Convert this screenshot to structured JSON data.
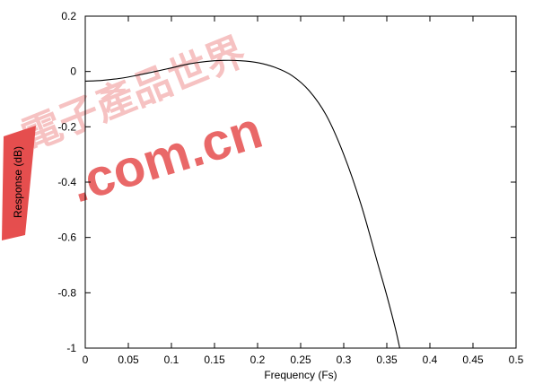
{
  "chart_data": {
    "type": "line",
    "title": "",
    "xlabel": "Frequency (Fs)",
    "ylabel": "Response (dB)",
    "xlim": [
      0,
      0.5
    ],
    "ylim": [
      -1,
      0.2
    ],
    "x_ticks": [
      0,
      0.05,
      0.1,
      0.15,
      0.2,
      0.25,
      0.3,
      0.35,
      0.4,
      0.45,
      0.5
    ],
    "x_tick_labels": [
      "0",
      "0.05",
      "0.1",
      "0.15",
      "0.2",
      "0.25",
      "0.3",
      "0.35",
      "0.4",
      "0.45",
      "0.5"
    ],
    "y_ticks": [
      0.2,
      0,
      -0.2,
      -0.4,
      -0.6,
      -0.8,
      -1
    ],
    "y_tick_labels": [
      "0.2",
      "0",
      "-0.2",
      "-0.4",
      "-0.6",
      "-0.8",
      "-1"
    ],
    "grid": false,
    "series": [
      {
        "color": "#000000",
        "x": [
          0,
          0.02,
          0.04,
          0.06,
          0.08,
          0.1,
          0.12,
          0.14,
          0.16,
          0.18,
          0.2,
          0.22,
          0.24,
          0.26,
          0.28,
          0.3,
          0.32,
          0.34,
          0.35,
          0.36,
          0.365
        ],
        "y": [
          -0.035,
          -0.032,
          -0.025,
          -0.014,
          -0.001,
          0.013,
          0.027,
          0.036,
          0.04,
          0.039,
          0.032,
          0.015,
          -0.015,
          -0.07,
          -0.16,
          -0.3,
          -0.48,
          -0.7,
          -0.81,
          -0.93,
          -1.0
        ]
      }
    ]
  },
  "watermark": {
    "chinese_text": "電子產品世界",
    "domain_text": ".com.cn",
    "color": "#e33b3b"
  }
}
